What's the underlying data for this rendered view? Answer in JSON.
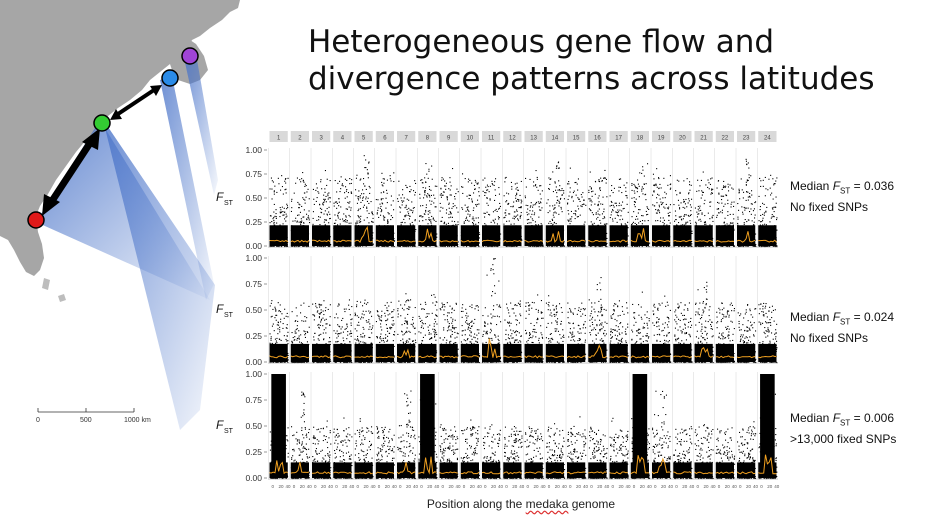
{
  "title": {
    "line1": "Heterogeneous gene flow and",
    "line2": "divergence patterns across latitudes"
  },
  "map": {
    "land_color": "#a6a6a6",
    "cone_color": "#4a74c9",
    "sites": [
      {
        "name": "red",
        "color": "#e01a1a"
      },
      {
        "name": "green",
        "color": "#33cc33"
      },
      {
        "name": "blue",
        "color": "#2a8be8"
      },
      {
        "name": "purple",
        "color": "#a044d6"
      }
    ],
    "scale_bar": {
      "labels": [
        "0",
        "500",
        "1000 km"
      ]
    }
  },
  "chromosomes": [
    "1",
    "2",
    "3",
    "4",
    "5",
    "6",
    "7",
    "8",
    "9",
    "10",
    "11",
    "12",
    "13",
    "14",
    "15",
    "16",
    "17",
    "18",
    "19",
    "20",
    "21",
    "22",
    "23",
    "24"
  ],
  "y_axis": {
    "label_main": "F",
    "label_sub": "ST",
    "ticks": [
      "0.00",
      "0.25",
      "0.50",
      "0.75",
      "1.00"
    ]
  },
  "panels": [
    {
      "median_prefix": "Median ",
      "median_sym": "F",
      "median_sub": "ST",
      "median_value": " = 0.036",
      "fixed_snps": "No fixed SNPs",
      "typical_max": 0.72,
      "peaks": {
        "5": 0.95,
        "8": 0.9,
        "14": 0.92,
        "18": 0.9,
        "23": 0.93
      }
    },
    {
      "median_prefix": "Median ",
      "median_sym": "F",
      "median_sub": "ST",
      "median_value": " = 0.024",
      "fixed_snps": "No fixed SNPs",
      "typical_max": 0.58,
      "peaks": {
        "11": 1.0,
        "16": 0.82,
        "21": 0.78,
        "7": 0.7
      }
    },
    {
      "median_prefix": "Median ",
      "median_sym": "F",
      "median_sub": "ST",
      "median_value": " = 0.006",
      "fixed_snps": ">13,000 fixed SNPs",
      "typical_max": 0.5,
      "peaks": {
        "1": 1.0,
        "8": 1.0,
        "18": 1.0,
        "24": 1.0,
        "7": 0.85,
        "2": 0.9,
        "19": 0.9
      }
    }
  ],
  "x_tick_labels": [
    "0",
    "20",
    "40"
  ],
  "x_axis_label": {
    "before": "Position along the ",
    "underlined": "medaka",
    "after": " genome"
  },
  "colors": {
    "points": "#000000",
    "median_line": "#f0a020",
    "strip_bg": "#d9d9d9"
  }
}
